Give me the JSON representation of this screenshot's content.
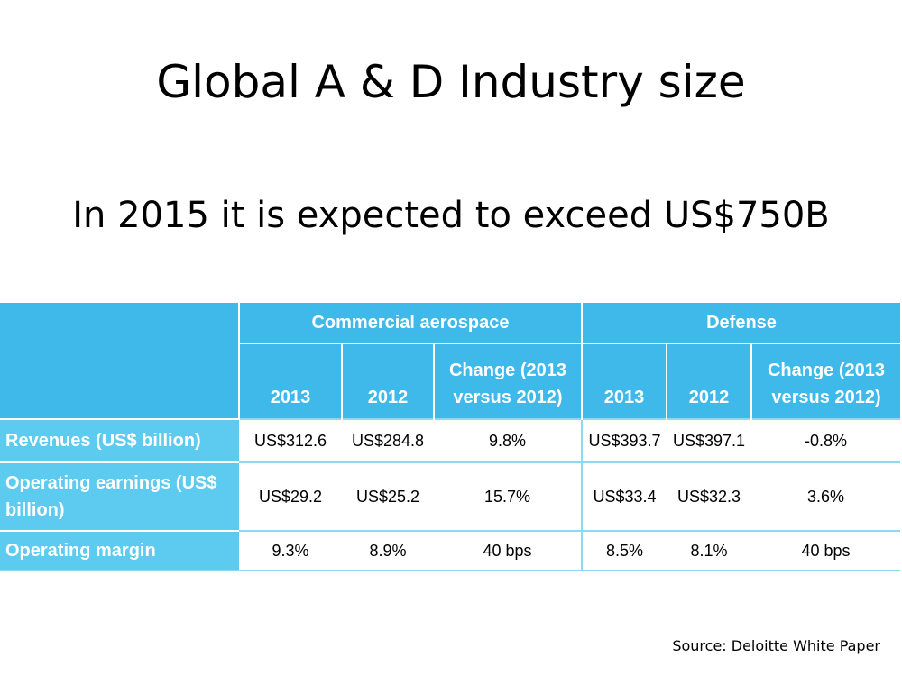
{
  "slide": {
    "title": "Global A & D Industry size",
    "subtitle": "In 2015 it is expected to exceed US$750B",
    "source": "Source: Deloitte White Paper"
  },
  "table": {
    "groups": [
      "Commercial aerospace",
      "Defense"
    ],
    "columns": [
      "2013",
      "2012",
      "Change (2013 versus 2012)",
      "2013",
      "2012",
      "Change (2013 versus 2012)"
    ],
    "rows": [
      {
        "label": "Revenues (US$ billion)",
        "values": [
          "US$312.6",
          "US$284.8",
          "9.8%",
          "US$393.7",
          "US$397.1",
          "-0.8%"
        ]
      },
      {
        "label": "Operating earnings (US$ billion)",
        "values": [
          "US$29.2",
          "US$25.2",
          "15.7%",
          "US$33.4",
          "US$32.3",
          "3.6%"
        ]
      },
      {
        "label": "Operating margin",
        "values": [
          "9.3%",
          "8.9%",
          "40 bps",
          "8.5%",
          "8.1%",
          "40 bps"
        ]
      }
    ],
    "colors": {
      "header": "#3fb8ea",
      "row_label": "#5ccbef",
      "grid": "#8ed9f2"
    }
  }
}
